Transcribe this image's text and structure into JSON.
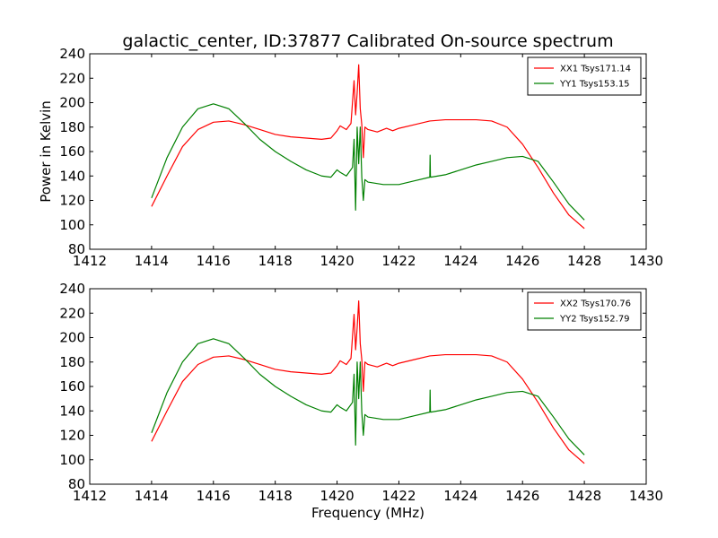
{
  "chart_data": [
    {
      "type": "line",
      "title": "galactic_center, ID:37877 Calibrated On-source spectrum",
      "xlabel": "",
      "ylabel": "Power in Kelvin",
      "xlim": [
        1412,
        1430
      ],
      "ylim": [
        80,
        240
      ],
      "xticks": [
        "1412",
        "1414",
        "1416",
        "1418",
        "1420",
        "1422",
        "1424",
        "1426",
        "1428",
        "1430"
      ],
      "yticks": [
        "80",
        "100",
        "120",
        "140",
        "160",
        "180",
        "200",
        "220",
        "240"
      ],
      "grid": false,
      "legend_position": "top-right",
      "series": [
        {
          "name": "XX1 Tsys171.14",
          "color": "#ff0000",
          "x": [
            1414.0,
            1414.5,
            1415.0,
            1415.5,
            1416.0,
            1416.5,
            1417.0,
            1417.5,
            1418.0,
            1418.5,
            1419.0,
            1419.5,
            1419.8,
            1420.0,
            1420.1,
            1420.3,
            1420.45,
            1420.55,
            1420.6,
            1420.65,
            1420.7,
            1420.75,
            1420.8,
            1420.85,
            1420.9,
            1421.0,
            1421.3,
            1421.6,
            1421.8,
            1422.0,
            1422.5,
            1423.0,
            1423.5,
            1424.0,
            1424.5,
            1425.0,
            1425.5,
            1426.0,
            1426.5,
            1427.0,
            1427.5,
            1428.0
          ],
          "y": [
            115,
            140,
            164,
            178,
            184,
            185,
            182,
            178,
            174,
            172,
            171,
            170,
            171,
            177,
            181,
            178,
            183,
            218,
            190,
            208,
            231,
            195,
            182,
            155,
            180,
            178,
            176,
            179,
            177,
            179,
            182,
            185,
            186,
            186,
            186,
            185,
            180,
            166,
            147,
            126,
            108,
            97
          ]
        },
        {
          "name": "YY1 Tsys153.15",
          "color": "#008000",
          "x": [
            1414.0,
            1414.5,
            1415.0,
            1415.5,
            1416.0,
            1416.5,
            1417.0,
            1417.5,
            1418.0,
            1418.5,
            1419.0,
            1419.5,
            1419.8,
            1420.0,
            1420.1,
            1420.3,
            1420.5,
            1420.55,
            1420.6,
            1420.65,
            1420.7,
            1420.75,
            1420.8,
            1420.85,
            1420.9,
            1421.0,
            1421.5,
            1422.0,
            1422.5,
            1423.0,
            1423.01,
            1423.02,
            1423.03,
            1423.5,
            1424.0,
            1424.5,
            1425.0,
            1425.5,
            1426.0,
            1426.5,
            1427.0,
            1427.5,
            1428.0
          ],
          "y": [
            122,
            155,
            180,
            195,
            199,
            195,
            183,
            170,
            160,
            152,
            145,
            140,
            139,
            145,
            143,
            140,
            147,
            170,
            112,
            180,
            150,
            180,
            139,
            120,
            137,
            135,
            133,
            133,
            136,
            139,
            157,
            140,
            139,
            141,
            145,
            149,
            152,
            155,
            156,
            152,
            135,
            117,
            104
          ]
        }
      ]
    },
    {
      "type": "line",
      "title": "",
      "xlabel": "Frequency (MHz)",
      "ylabel": "",
      "xlim": [
        1412,
        1430
      ],
      "ylim": [
        80,
        240
      ],
      "xticks": [
        "1412",
        "1414",
        "1416",
        "1418",
        "1420",
        "1422",
        "1424",
        "1426",
        "1428",
        "1430"
      ],
      "yticks": [
        "80",
        "100",
        "120",
        "140",
        "160",
        "180",
        "200",
        "220",
        "240"
      ],
      "grid": false,
      "legend_position": "top-right",
      "series": [
        {
          "name": "XX2 Tsys170.76",
          "color": "#ff0000",
          "x": [
            1414.0,
            1414.5,
            1415.0,
            1415.5,
            1416.0,
            1416.5,
            1417.0,
            1417.5,
            1418.0,
            1418.5,
            1419.0,
            1419.5,
            1419.8,
            1420.0,
            1420.1,
            1420.3,
            1420.45,
            1420.55,
            1420.6,
            1420.65,
            1420.7,
            1420.75,
            1420.8,
            1420.85,
            1420.9,
            1421.0,
            1421.3,
            1421.6,
            1421.8,
            1422.0,
            1422.5,
            1423.0,
            1423.5,
            1424.0,
            1424.5,
            1425.0,
            1425.5,
            1426.0,
            1426.5,
            1427.0,
            1427.5,
            1428.0
          ],
          "y": [
            115,
            140,
            164,
            178,
            184,
            185,
            182,
            178,
            174,
            172,
            171,
            170,
            171,
            177,
            181,
            178,
            183,
            219,
            190,
            208,
            230,
            195,
            182,
            156,
            180,
            178,
            176,
            179,
            177,
            179,
            182,
            185,
            186,
            186,
            186,
            185,
            180,
            166,
            147,
            126,
            108,
            97
          ]
        },
        {
          "name": "YY2 Tsys152.79",
          "color": "#008000",
          "x": [
            1414.0,
            1414.5,
            1415.0,
            1415.5,
            1416.0,
            1416.5,
            1417.0,
            1417.5,
            1418.0,
            1418.5,
            1419.0,
            1419.5,
            1419.8,
            1420.0,
            1420.1,
            1420.3,
            1420.5,
            1420.55,
            1420.6,
            1420.65,
            1420.7,
            1420.75,
            1420.8,
            1420.85,
            1420.9,
            1421.0,
            1421.5,
            1422.0,
            1422.5,
            1423.0,
            1423.01,
            1423.02,
            1423.03,
            1423.5,
            1424.0,
            1424.5,
            1425.0,
            1425.5,
            1426.0,
            1426.5,
            1427.0,
            1427.5,
            1428.0
          ],
          "y": [
            122,
            155,
            180,
            195,
            199,
            195,
            183,
            170,
            160,
            152,
            145,
            140,
            139,
            145,
            143,
            140,
            147,
            170,
            112,
            180,
            150,
            180,
            139,
            120,
            137,
            135,
            133,
            133,
            136,
            139,
            157,
            140,
            139,
            141,
            145,
            149,
            152,
            155,
            156,
            152,
            135,
            117,
            104
          ]
        }
      ]
    }
  ]
}
